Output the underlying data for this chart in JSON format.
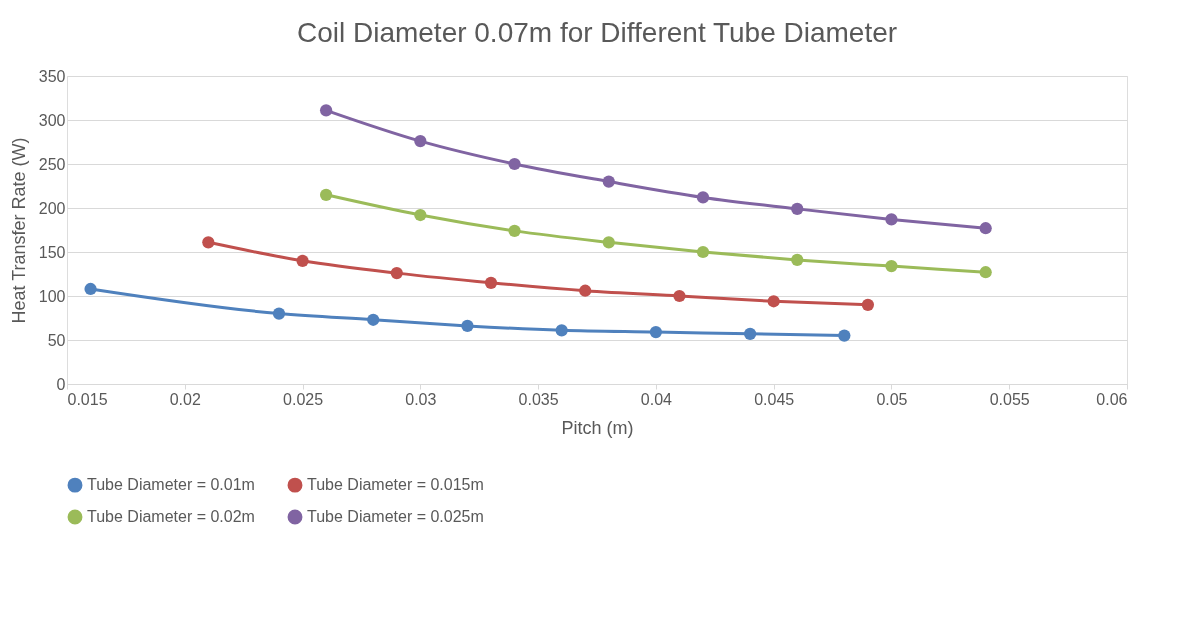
{
  "chart_data": {
    "type": "line",
    "title": "Coil Diameter 0.07m for Different Tube Diameter",
    "xlabel": "Pitch (m)",
    "ylabel": "Heat Transfer Rate (W)",
    "xlim": [
      0.015,
      0.06
    ],
    "xticks": [
      0.015,
      0.02,
      0.025,
      0.03,
      0.035,
      0.04,
      0.045,
      0.05,
      0.055,
      0.06
    ],
    "ylim": [
      0,
      350
    ],
    "yticks": [
      0,
      50,
      100,
      150,
      200,
      250,
      300,
      350
    ],
    "grid": "y",
    "legend": "bottom",
    "marker": "circle",
    "line_style": "solid",
    "series": [
      {
        "name": "Tube Diameter = 0.01m",
        "color": "#4f81bd",
        "x": [
          0.016,
          0.024,
          0.028,
          0.032,
          0.036,
          0.04,
          0.044,
          0.048
        ],
        "values": [
          108,
          80,
          73,
          66,
          61,
          59,
          57,
          55
        ]
      },
      {
        "name": "Tube Diameter = 0.015m",
        "color": "#c0504d",
        "x": [
          0.021,
          0.025,
          0.029,
          0.033,
          0.037,
          0.041,
          0.045,
          0.049
        ],
        "values": [
          161,
          140,
          126,
          115,
          106,
          100,
          94,
          90
        ]
      },
      {
        "name": "Tube Diameter = 0.02m",
        "color": "#9bbb59",
        "x": [
          0.026,
          0.03,
          0.034,
          0.038,
          0.042,
          0.046,
          0.05,
          0.054
        ],
        "values": [
          215,
          192,
          174,
          161,
          150,
          141,
          134,
          127
        ]
      },
      {
        "name": "Tube Diameter = 0.025m",
        "color": "#8064a2",
        "x": [
          0.026,
          0.03,
          0.034,
          0.038,
          0.042,
          0.046,
          0.05,
          0.054
        ],
        "values": [
          311,
          276,
          250,
          230,
          212,
          199,
          187,
          177
        ]
      }
    ]
  }
}
